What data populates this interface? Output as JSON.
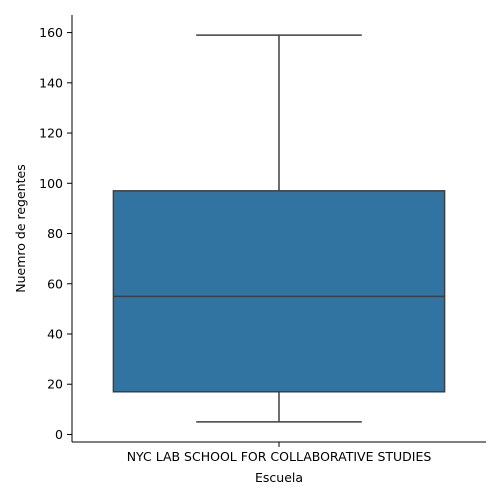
{
  "chart_data": {
    "type": "box",
    "title": "",
    "xlabel": "Escuela",
    "ylabel": "Nuemro de regentes",
    "categories": [
      "NYC LAB SCHOOL FOR COLLABORATIVE STUDIES"
    ],
    "boxes": [
      {
        "category": "NYC LAB SCHOOL FOR COLLABORATIVE STUDIES",
        "whisker_low": 5,
        "q1": 17,
        "median": 55,
        "q3": 97,
        "whisker_high": 159
      }
    ],
    "yticks": [
      0,
      20,
      40,
      60,
      80,
      100,
      120,
      140,
      160
    ],
    "ylim": [
      -3,
      167
    ],
    "grid": false,
    "legend": "none",
    "colors": {
      "box_fill": "#3274a1",
      "line": "#3f3f3f",
      "axis": "#000000"
    }
  }
}
